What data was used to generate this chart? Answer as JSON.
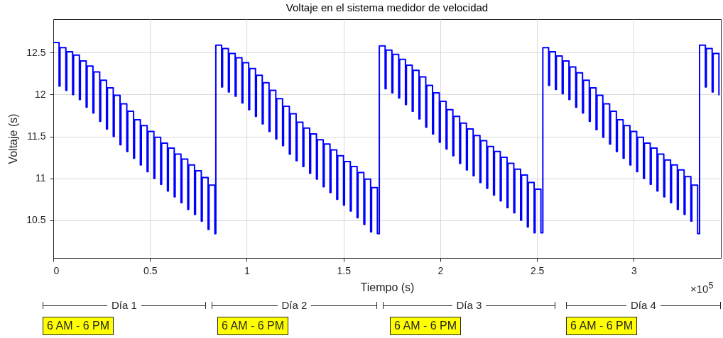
{
  "chart_data": {
    "type": "step",
    "title": "Voltaje en el sistema medidor de velocidad",
    "xlabel": "Tiempo (s)",
    "ylabel": "Voltaje (s)",
    "annotations": [
      "×10$^{5}$",
      "Día 1",
      "6 AM - 6 PM",
      "Día 2",
      "6 AM - 6 PM",
      "Día 3",
      "6 AM - 6 PM",
      "Día 4",
      "6 AM - 6 PM"
    ],
    "x": [
      0,
      0.03,
      0.035,
      0.065,
      0.07,
      0.1,
      0.105,
      0.135,
      0.14,
      0.17,
      0.175,
      0.205,
      0.21,
      0.24,
      0.245,
      0.275,
      0.28,
      0.31,
      0.315,
      0.345,
      0.35,
      0.38,
      0.385,
      0.415,
      0.42,
      0.45,
      0.455,
      0.485,
      0.49,
      0.52,
      0.525,
      0.555,
      0.56,
      0.59,
      0.595,
      0.625,
      0.63,
      0.66,
      0.665,
      0.695,
      0.7,
      0.73,
      0.735,
      0.765,
      0.77,
      0.8,
      0.805,
      0.835,
      0.84,
      0.87,
      0.875,
      0.905,
      0.91,
      0.94,
      0.945,
      0.975,
      0.98,
      1.01,
      1.015,
      1.045,
      1.05,
      1.08,
      1.085,
      1.115,
      1.12,
      1.15,
      1.155,
      1.185,
      1.19,
      1.22,
      1.225,
      1.255,
      1.26,
      1.29,
      1.295,
      1.325,
      1.33,
      1.36,
      1.365,
      1.395,
      1.4,
      1.43,
      1.435,
      1.465,
      1.47,
      1.5,
      1.505,
      1.535,
      1.54,
      1.57,
      1.575,
      1.605,
      1.61,
      1.64,
      1.645,
      1.675,
      1.685,
      1.715,
      1.72,
      1.75,
      1.755,
      1.785,
      1.79,
      1.82,
      1.825,
      1.855,
      1.86,
      1.89,
      1.895,
      1.925,
      1.93,
      1.96,
      1.965,
      1.995,
      2,
      2.03,
      2.035,
      2.065,
      2.07,
      2.1,
      2.105,
      2.135,
      2.14,
      2.17,
      2.175,
      2.205,
      2.21,
      2.24,
      2.245,
      2.275,
      2.28,
      2.31,
      2.315,
      2.345,
      2.35,
      2.38,
      2.385,
      2.415,
      2.42,
      2.45,
      2.455,
      2.485,
      2.49,
      2.52,
      2.53,
      2.56,
      2.565,
      2.595,
      2.6,
      2.63,
      2.635,
      2.665,
      2.67,
      2.7,
      2.705,
      2.735,
      2.74,
      2.77,
      2.775,
      2.805,
      2.81,
      2.84,
      2.845,
      2.875,
      2.88,
      2.91,
      2.915,
      2.945,
      2.95,
      2.98,
      2.985,
      3.015,
      3.02,
      3.05,
      3.055,
      3.085,
      3.09,
      3.12,
      3.125,
      3.155,
      3.16,
      3.19,
      3.195,
      3.225,
      3.23,
      3.26,
      3.265,
      3.295,
      3.3,
      3.33,
      3.34,
      3.37,
      3.375,
      3.405,
      3.41,
      3.44
    ],
    "series": [
      {
        "color": "#0000ff",
        "values": [
          12.62,
          12.1,
          12.56,
          12.05,
          12.51,
          12.0,
          12.47,
          11.94,
          12.4,
          11.85,
          12.34,
          11.78,
          12.27,
          11.68,
          12.17,
          11.59,
          12.08,
          11.5,
          11.99,
          11.4,
          11.89,
          11.32,
          11.8,
          11.24,
          11.7,
          11.16,
          11.63,
          11.08,
          11.56,
          11.0,
          11.49,
          10.93,
          11.42,
          10.85,
          11.36,
          10.78,
          11.29,
          10.71,
          11.23,
          10.63,
          11.16,
          10.57,
          11.09,
          10.49,
          11.01,
          10.39,
          10.92,
          10.34,
          12.59,
          12.09,
          12.55,
          12.03,
          12.49,
          11.98,
          12.44,
          11.9,
          12.38,
          11.82,
          12.31,
          11.74,
          12.23,
          11.65,
          12.14,
          11.56,
          12.05,
          11.47,
          11.95,
          11.39,
          11.86,
          11.29,
          11.77,
          11.21,
          11.67,
          11.14,
          11.6,
          11.06,
          11.53,
          10.99,
          11.46,
          10.9,
          11.41,
          10.83,
          11.34,
          10.75,
          11.27,
          10.68,
          11.2,
          10.61,
          11.14,
          10.53,
          11.07,
          10.45,
          10.99,
          10.36,
          10.89,
          10.34,
          12.58,
          12.07,
          12.53,
          12.02,
          12.48,
          11.96,
          12.42,
          11.88,
          12.35,
          11.8,
          12.29,
          11.71,
          12.21,
          11.61,
          12.11,
          11.53,
          12.02,
          11.43,
          11.92,
          11.35,
          11.82,
          11.27,
          11.74,
          11.18,
          11.66,
          11.1,
          11.59,
          11.03,
          11.51,
          10.95,
          11.45,
          10.88,
          11.38,
          10.8,
          11.32,
          10.73,
          11.25,
          10.65,
          11.18,
          10.59,
          11.11,
          10.5,
          11.04,
          10.42,
          10.95,
          10.35,
          10.87,
          10.35,
          12.56,
          12.11,
          12.51,
          12.06,
          12.46,
          12.01,
          12.4,
          11.94,
          12.33,
          11.85,
          12.26,
          11.78,
          12.17,
          11.68,
          12.08,
          11.58,
          11.99,
          11.49,
          11.89,
          11.41,
          11.8,
          11.32,
          11.7,
          11.24,
          11.63,
          11.16,
          11.56,
          11.08,
          11.49,
          11.0,
          11.42,
          10.93,
          11.36,
          10.85,
          11.29,
          10.78,
          11.22,
          10.71,
          11.16,
          10.63,
          11.1,
          10.57,
          11.02,
          10.49,
          10.92,
          10.34,
          12.59,
          12.09,
          12.55,
          12.03,
          12.49,
          11.99
        ]
      }
    ],
    "xlim": [
      0,
      3.45
    ],
    "xticks": [
      0,
      0.5,
      1,
      1.5,
      2,
      2.5,
      3
    ],
    "ylim": [
      10.05,
      12.9
    ],
    "yticks": [
      10.5,
      11,
      11.5,
      12,
      12.5
    ],
    "grid": true
  }
}
